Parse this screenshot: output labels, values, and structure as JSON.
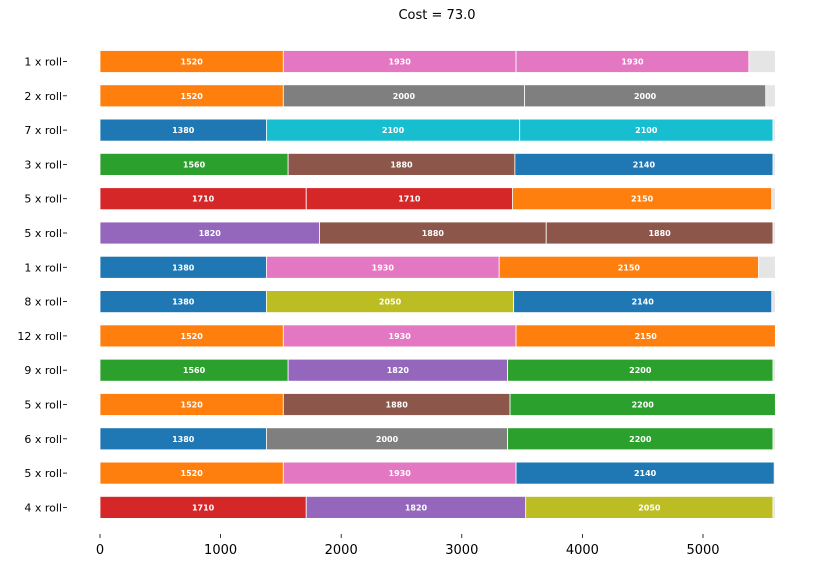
{
  "chart_data": {
    "type": "bar",
    "orientation": "horizontal",
    "stacked": true,
    "title": "Cost = 73.0",
    "stock_length": 5600,
    "xlim": [
      0,
      5600
    ],
    "xticks": [
      0,
      1000,
      2000,
      3000,
      4000,
      5000
    ],
    "grid": false,
    "waste_color": "#e5e5e5",
    "color_map": {
      "1380": "#1f77b4",
      "1520": "#ff7f0e",
      "1560": "#2ca02c",
      "1710": "#d62728",
      "1820": "#9467bd",
      "1880": "#8c564b",
      "1930": "#e377c2",
      "2000": "#7f7f7f",
      "2050": "#bcbd22",
      "2100": "#17becf",
      "2140": "#1f77b4",
      "2150": "#ff7f0e",
      "2200": "#2ca02c"
    },
    "rows": [
      {
        "label": "1 x roll",
        "pieces": [
          1520,
          1930,
          1930
        ]
      },
      {
        "label": "2 x roll",
        "pieces": [
          1520,
          2000,
          2000
        ]
      },
      {
        "label": "7 x roll",
        "pieces": [
          1380,
          2100,
          2100
        ]
      },
      {
        "label": "3 x roll",
        "pieces": [
          1560,
          1880,
          2140
        ]
      },
      {
        "label": "5 x roll",
        "pieces": [
          1710,
          1710,
          2150
        ]
      },
      {
        "label": "5 x roll",
        "pieces": [
          1820,
          1880,
          1880
        ]
      },
      {
        "label": "1 x roll",
        "pieces": [
          1380,
          1930,
          2150
        ]
      },
      {
        "label": "8 x roll",
        "pieces": [
          1380,
          2050,
          2140
        ]
      },
      {
        "label": "12 x roll",
        "pieces": [
          1520,
          1930,
          2150
        ]
      },
      {
        "label": "9 x roll",
        "pieces": [
          1560,
          1820,
          2200
        ]
      },
      {
        "label": "5 x roll",
        "pieces": [
          1520,
          1880,
          2200
        ]
      },
      {
        "label": "6 x roll",
        "pieces": [
          1380,
          2000,
          2200
        ]
      },
      {
        "label": "5 x roll",
        "pieces": [
          1520,
          1930,
          2140
        ]
      },
      {
        "label": "4 x roll",
        "pieces": [
          1710,
          1820,
          2050
        ]
      }
    ]
  }
}
